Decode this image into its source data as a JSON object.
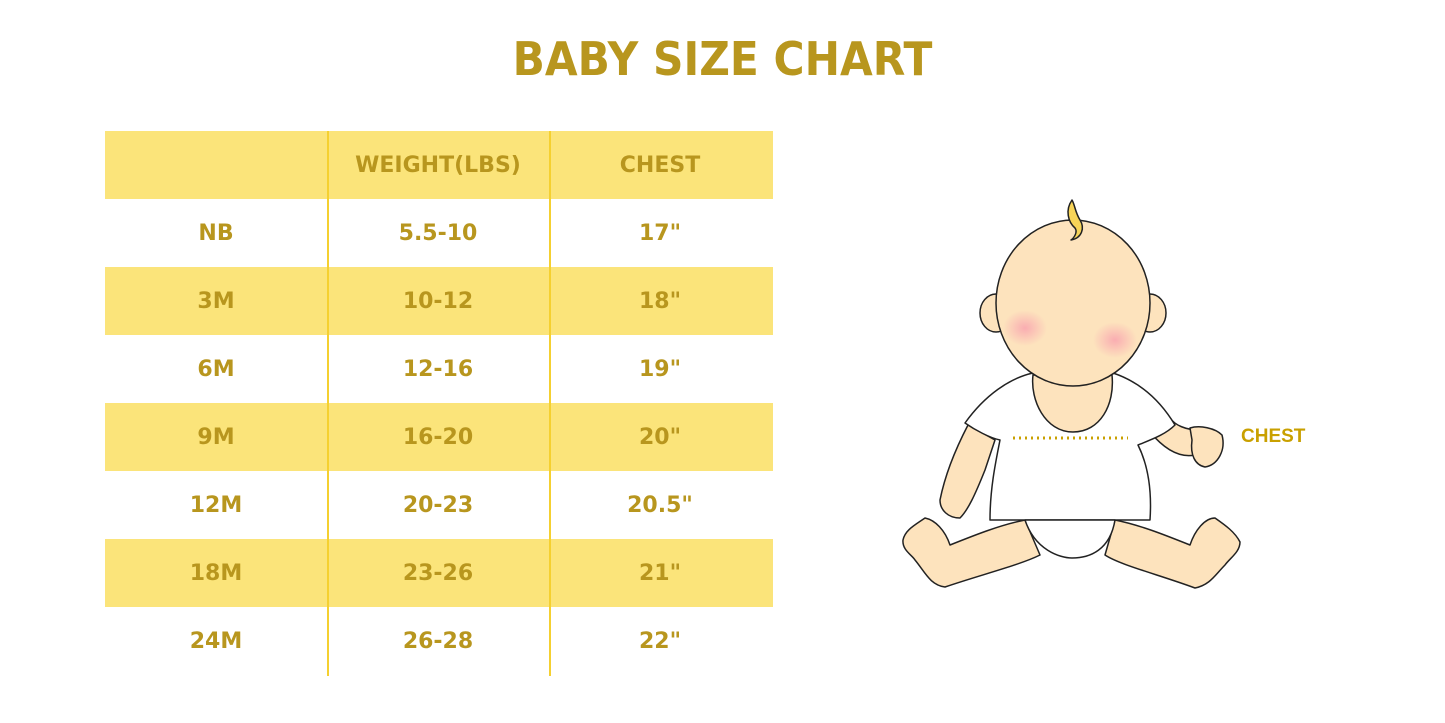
{
  "title": "BABY SIZE CHART",
  "table": {
    "headers": [
      "",
      "WEIGHT(LBS)",
      "CHEST"
    ],
    "rows": [
      [
        "NB",
        "5.5-10",
        "17\""
      ],
      [
        "3M",
        "10-12",
        "18\""
      ],
      [
        "6M",
        "12-16",
        "19\""
      ],
      [
        "9M",
        "16-20",
        "20\""
      ],
      [
        "12M",
        "20-23",
        "20.5\""
      ],
      [
        "18M",
        "23-26",
        "21\""
      ],
      [
        "24M",
        "26-28",
        "22\""
      ]
    ]
  },
  "illustration": {
    "chest_label": "CHEST"
  },
  "colors": {
    "text": "#b8961e",
    "row_highlight": "#fbe47a",
    "divider": "#f5d030",
    "skin": "#fde3bd"
  }
}
